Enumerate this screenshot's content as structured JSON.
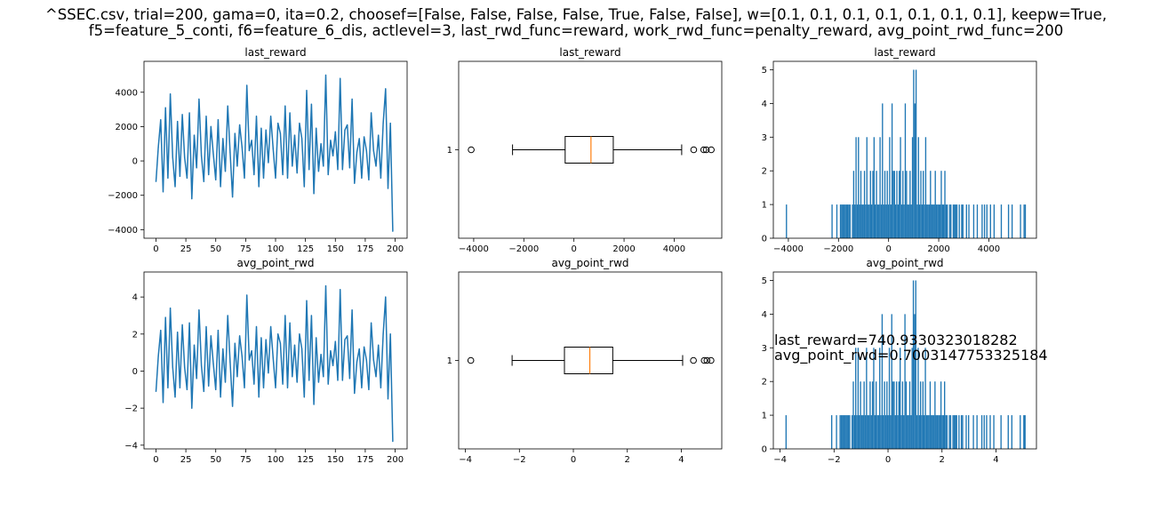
{
  "figure": {
    "suptitle_line1": "^SSEC.csv, trial=200, gama=0, ita=0.2, choosef=[False, False, False, False, True, False, False], w=[0.1, 0.1, 0.1, 0.1, 0.1, 0.1, 0.1], keepw=True,",
    "suptitle_line2": "f5=feature_5_conti, f6=feature_6_dis, actlevel=3, last_rwd_func=reward, work_rwd_func=penalty_reward, avg_point_rwd_func=200",
    "annotation_line1": "last_reward=740.9330323018282",
    "annotation_line2": "avg_point_rwd=0.7003147753325184",
    "colors": {
      "line": "#1f77b4",
      "bar": "#1f77b4",
      "median": "#ff7f0e",
      "axis": "#000000"
    }
  },
  "chart_data": [
    {
      "type": "line",
      "title": "last_reward",
      "x": [
        0,
        2,
        4,
        6,
        8,
        10,
        12,
        14,
        16,
        18,
        20,
        22,
        24,
        26,
        28,
        30,
        32,
        34,
        36,
        38,
        40,
        42,
        44,
        46,
        48,
        50,
        52,
        54,
        56,
        58,
        60,
        62,
        64,
        66,
        68,
        70,
        72,
        74,
        76,
        78,
        80,
        82,
        84,
        86,
        88,
        90,
        92,
        94,
        96,
        98,
        100,
        102,
        104,
        106,
        108,
        110,
        112,
        114,
        116,
        118,
        120,
        122,
        124,
        126,
        128,
        130,
        132,
        134,
        136,
        138,
        140,
        142,
        144,
        146,
        148,
        150,
        152,
        154,
        156,
        158,
        160,
        162,
        164,
        166,
        168,
        170,
        172,
        174,
        176,
        178,
        180,
        182,
        184,
        186,
        188,
        190,
        192,
        194,
        196,
        198
      ],
      "values": [
        -1200,
        800,
        2400,
        -1800,
        3100,
        -1000,
        3900,
        200,
        -1500,
        2300,
        -900,
        2700,
        200,
        -1000,
        2800,
        -2200,
        1500,
        -400,
        3600,
        300,
        -1200,
        2600,
        -800,
        2000,
        400,
        -1100,
        2400,
        -1500,
        1300,
        -600,
        3200,
        500,
        -2100,
        1600,
        -300,
        2100,
        800,
        -1000,
        4400,
        600,
        1200,
        -800,
        2600,
        -1500,
        1900,
        -1000,
        1800,
        -100,
        2600,
        700,
        -1000,
        2200,
        1600,
        -800,
        3200,
        -1000,
        2800,
        -300,
        1500,
        -700,
        2200,
        1300,
        -1500,
        4100,
        -500,
        3300,
        -1900,
        1900,
        -600,
        1000,
        -300,
        5000,
        -800,
        1200,
        300,
        1700,
        -500,
        4800,
        -500,
        1800,
        2100,
        -400,
        3600,
        -1300,
        500,
        1300,
        -1000,
        1400,
        600,
        -1100,
        2800,
        600,
        -300,
        1500,
        -1000,
        2200,
        4200,
        -1600,
        2200,
        -4100
      ],
      "xlim": [
        -10,
        210
      ],
      "ylim": [
        -4500,
        5800
      ],
      "xticks": [
        0,
        25,
        50,
        75,
        100,
        125,
        150,
        175,
        200
      ],
      "yticks": [
        -4000,
        -2000,
        0,
        2000,
        4000
      ]
    },
    {
      "type": "box",
      "title": "last_reward",
      "box": {
        "whisker_low": -2450,
        "q1": -350,
        "median": 680,
        "q3": 1570,
        "whisker_high": 4300,
        "outliers": [
          -4100,
          4780,
          5180,
          5280,
          5480
        ]
      },
      "category": "1",
      "xlim": [
        -4600,
        5900
      ],
      "xticks": [
        -4000,
        -2000,
        0,
        2000,
        4000
      ]
    },
    {
      "type": "bar",
      "title": "last_reward",
      "x_start": -4100,
      "x_end": 5480,
      "bins": 200,
      "counts": [
        1,
        0,
        0,
        0,
        0,
        0,
        0,
        0,
        0,
        0,
        0,
        0,
        0,
        0,
        0,
        0,
        0,
        0,
        0,
        0,
        0,
        0,
        0,
        0,
        0,
        0,
        0,
        0,
        0,
        0,
        0,
        0,
        0,
        0,
        0,
        0,
        0,
        0,
        1,
        0,
        0,
        0,
        1,
        0,
        0,
        1,
        1,
        1,
        1,
        1,
        1,
        1,
        1,
        1,
        0,
        1,
        2,
        1,
        3,
        1,
        3,
        1,
        2,
        1,
        1,
        2,
        1,
        3,
        1,
        1,
        2,
        1,
        2,
        3,
        1,
        2,
        1,
        1,
        3,
        1,
        4,
        1,
        2,
        1,
        2,
        1,
        3,
        1,
        4,
        2,
        2,
        1,
        2,
        1,
        2,
        3,
        1,
        2,
        1,
        4,
        2,
        1,
        1,
        2,
        1,
        3,
        5,
        4,
        5,
        1,
        3,
        1,
        2,
        1,
        2,
        1,
        3,
        1,
        1,
        1,
        2,
        1,
        1,
        1,
        2,
        1,
        1,
        1,
        1,
        2,
        1,
        1,
        2,
        1,
        1,
        0,
        1,
        1,
        0,
        1,
        1,
        1,
        1,
        0,
        1,
        0,
        1,
        1,
        0,
        0,
        1,
        0,
        1,
        0,
        0,
        0,
        1,
        0,
        0,
        1,
        0,
        0,
        0,
        1,
        0,
        1,
        0,
        1,
        0,
        0,
        1,
        0,
        0,
        1,
        0,
        0,
        0,
        0,
        0,
        1,
        0,
        0,
        0,
        0,
        0,
        1,
        0,
        0,
        1,
        0,
        0,
        0,
        0,
        0,
        0,
        1,
        0,
        0,
        1,
        1
      ],
      "xlim": [
        -4600,
        5900
      ],
      "ylim": [
        0,
        5.25
      ],
      "xticks": [
        -4000,
        -2000,
        0,
        2000,
        4000
      ],
      "yticks": [
        0,
        1,
        2,
        3,
        4,
        5
      ]
    },
    {
      "type": "line",
      "title": "avg_point_rwd",
      "x": [
        0,
        2,
        4,
        6,
        8,
        10,
        12,
        14,
        16,
        18,
        20,
        22,
        24,
        26,
        28,
        30,
        32,
        34,
        36,
        38,
        40,
        42,
        44,
        46,
        48,
        50,
        52,
        54,
        56,
        58,
        60,
        62,
        64,
        66,
        68,
        70,
        72,
        74,
        76,
        78,
        80,
        82,
        84,
        86,
        88,
        90,
        92,
        94,
        96,
        98,
        100,
        102,
        104,
        106,
        108,
        110,
        112,
        114,
        116,
        118,
        120,
        122,
        124,
        126,
        128,
        130,
        132,
        134,
        136,
        138,
        140,
        142,
        144,
        146,
        148,
        150,
        152,
        154,
        156,
        158,
        160,
        162,
        164,
        166,
        168,
        170,
        172,
        174,
        176,
        178,
        180,
        182,
        184,
        186,
        188,
        190,
        192,
        194,
        196,
        198
      ],
      "values": [
        -1.1,
        0.8,
        2.2,
        -1.7,
        2.9,
        -0.9,
        3.4,
        0.2,
        -1.4,
        2.1,
        -0.9,
        2.5,
        0.2,
        -1,
        2.6,
        -2,
        1.4,
        -0.4,
        3.3,
        0.3,
        -1.1,
        2.4,
        -0.8,
        1.9,
        0.4,
        -1,
        2.2,
        -1.4,
        1.2,
        -0.6,
        3,
        0.5,
        -1.9,
        1.5,
        -0.3,
        1.9,
        0.8,
        -0.9,
        4.1,
        0.6,
        1.1,
        -0.7,
        2.4,
        -1.4,
        1.8,
        -0.9,
        1.7,
        -0.1,
        2.4,
        0.7,
        -0.9,
        2,
        1.5,
        -0.7,
        3,
        -0.9,
        2.6,
        -0.3,
        1.4,
        -0.6,
        2,
        1.2,
        -1.4,
        3.8,
        -0.5,
        3,
        -1.8,
        1.8,
        -0.6,
        0.9,
        -0.3,
        4.6,
        -0.7,
        1.1,
        0.3,
        1.6,
        -0.5,
        4.4,
        -0.5,
        1.7,
        1.9,
        -0.4,
        3.3,
        -1.2,
        0.5,
        1.2,
        -0.9,
        1.3,
        0.6,
        -1,
        2.6,
        0.6,
        -0.3,
        1.4,
        -0.9,
        2,
        4,
        -1.5,
        2,
        -3.8
      ],
      "xlim": [
        -10,
        210
      ],
      "ylim": [
        -4.2,
        5.35
      ],
      "xticks": [
        0,
        25,
        50,
        75,
        100,
        125,
        150,
        175,
        200
      ],
      "yticks": [
        -4,
        -2,
        0,
        2,
        4
      ]
    },
    {
      "type": "box",
      "title": "avg_point_rwd",
      "box": {
        "whisker_low": -2.27,
        "q1": -0.33,
        "median": 0.61,
        "q3": 1.46,
        "whisker_high": 4.05,
        "outliers": [
          -3.8,
          4.45,
          4.85,
          4.95,
          5.1
        ]
      },
      "category": "1",
      "xlim": [
        -4.25,
        5.5
      ],
      "xticks": [
        -4,
        -2,
        0,
        2,
        4
      ]
    },
    {
      "type": "bar",
      "title": "avg_point_rwd",
      "x_start": -3.8,
      "x_end": 5.1,
      "bins": 200,
      "counts": [
        1,
        0,
        0,
        0,
        0,
        0,
        0,
        0,
        0,
        0,
        0,
        0,
        0,
        0,
        0,
        0,
        0,
        0,
        0,
        0,
        0,
        0,
        0,
        0,
        0,
        0,
        0,
        0,
        0,
        0,
        0,
        0,
        0,
        0,
        0,
        0,
        0,
        0,
        1,
        0,
        0,
        0,
        1,
        0,
        0,
        1,
        1,
        1,
        1,
        1,
        1,
        1,
        1,
        1,
        0,
        1,
        2,
        1,
        3,
        1,
        3,
        1,
        2,
        1,
        1,
        2,
        1,
        3,
        1,
        1,
        2,
        1,
        2,
        3,
        1,
        2,
        1,
        1,
        3,
        1,
        4,
        1,
        2,
        1,
        2,
        1,
        3,
        1,
        4,
        2,
        2,
        1,
        2,
        1,
        2,
        3,
        1,
        2,
        1,
        4,
        2,
        1,
        1,
        2,
        1,
        3,
        5,
        4,
        5,
        1,
        3,
        1,
        2,
        1,
        2,
        1,
        3,
        1,
        1,
        1,
        2,
        1,
        1,
        1,
        2,
        1,
        1,
        1,
        1,
        2,
        1,
        1,
        2,
        1,
        1,
        0,
        1,
        1,
        0,
        1,
        1,
        1,
        1,
        0,
        1,
        0,
        1,
        1,
        0,
        0,
        1,
        0,
        1,
        0,
        0,
        0,
        1,
        0,
        0,
        1,
        0,
        0,
        0,
        1,
        0,
        1,
        0,
        1,
        0,
        0,
        1,
        0,
        0,
        1,
        0,
        0,
        0,
        0,
        0,
        1,
        0,
        0,
        0,
        0,
        0,
        1,
        0,
        0,
        1,
        0,
        0,
        0,
        0,
        0,
        0,
        1,
        0,
        0,
        1,
        1
      ],
      "xlim": [
        -4.25,
        5.5
      ],
      "ylim": [
        0,
        5.25
      ],
      "xticks": [
        -4,
        -2,
        0,
        2,
        4
      ],
      "yticks": [
        0,
        1,
        2,
        3,
        4,
        5
      ]
    }
  ]
}
